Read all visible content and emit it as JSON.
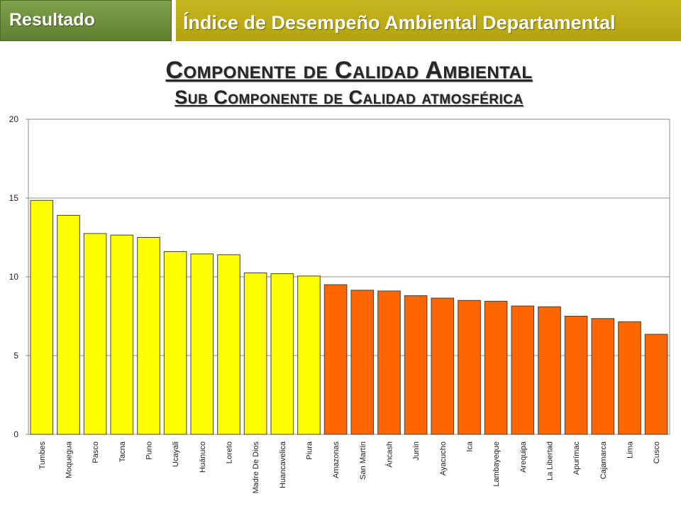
{
  "header": {
    "left_tab": "Resultado",
    "right_tab": "Índice de Desempeño Ambiental Departamental"
  },
  "colors": {
    "high": "#ffff00",
    "low": "#ff6600",
    "bar_stroke": "#404040",
    "grid": "#8c8c8c"
  },
  "chart_data": {
    "type": "bar",
    "title": "Componente de Calidad Ambiental",
    "subtitle": "Sub Componente de Calidad atmosférica",
    "xlabel": "",
    "ylabel": "",
    "ylim": [
      0,
      20
    ],
    "yticks": [
      0,
      5,
      10,
      15,
      20
    ],
    "grid": true,
    "categories": [
      "Tumbes",
      "Moquegua",
      "Pasco",
      "Tacna",
      "Puno",
      "Ucayali",
      "Huánuco",
      "Loreto",
      "Madre De Dios",
      "Huancavelica",
      "Piura",
      "Amazonas",
      "San Martín",
      "Áncash",
      "Junín",
      "Ayacucho",
      "Ica",
      "Lambayeque",
      "Arequipa",
      "La Libertad",
      "Apurímac",
      "Cajamarca",
      "Lima",
      "Cusco"
    ],
    "values": [
      14.85,
      13.9,
      12.75,
      12.65,
      12.5,
      11.6,
      11.45,
      11.4,
      10.25,
      10.2,
      10.05,
      9.5,
      9.15,
      9.1,
      8.8,
      8.65,
      8.5,
      8.45,
      8.15,
      8.1,
      7.5,
      7.35,
      7.15,
      6.35
    ],
    "bar_colors": [
      "high",
      "high",
      "high",
      "high",
      "high",
      "high",
      "high",
      "high",
      "high",
      "high",
      "high",
      "low",
      "low",
      "low",
      "low",
      "low",
      "low",
      "low",
      "low",
      "low",
      "low",
      "low",
      "low",
      "low"
    ]
  }
}
